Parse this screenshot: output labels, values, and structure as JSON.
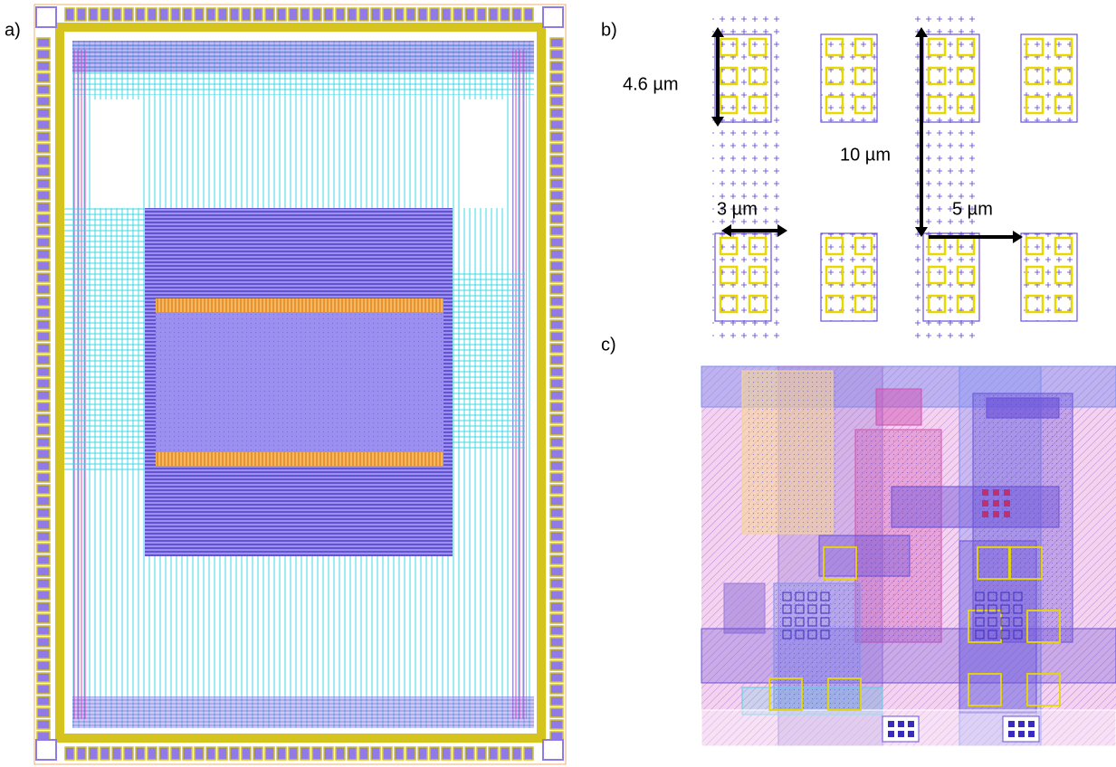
{
  "panels": [
    {
      "label": "a)"
    },
    {
      "label": "b)",
      "annotations": [
        "4.6 µm",
        "3 µm",
        "10 µm",
        "5 µm"
      ]
    },
    {
      "label": "c)"
    }
  ]
}
